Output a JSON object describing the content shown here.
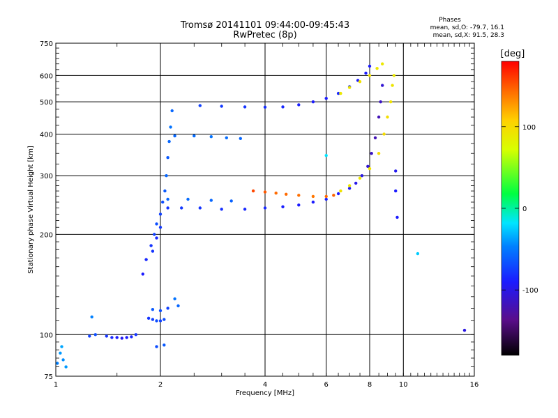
{
  "chart_data": {
    "type": "scatter",
    "title": "Tromsø 20141101 09:44:00-09:45:43",
    "subtitle": "RwPretec (8p)",
    "xlabel": "Frequency [MHz]",
    "ylabel": "Stationary phase Virtual Height [km]",
    "x_scale": "log2",
    "y_scale": "log",
    "xlim": [
      1,
      16
    ],
    "ylim": [
      75,
      750
    ],
    "x_ticks": [
      1,
      2,
      4,
      6,
      8,
      10,
      16
    ],
    "y_ticks": [
      75,
      100,
      200,
      300,
      400,
      500,
      600,
      750
    ],
    "grid": true,
    "phase_box": {
      "title": "Phases",
      "line1": "mean, sd,O: -79.7, 16.1",
      "line2": "mean, sd,X:  91.5, 28.3"
    },
    "colorbar": {
      "label": "[deg]",
      "range": [
        -180,
        180
      ],
      "ticks": [
        100,
        0,
        -100
      ],
      "tick_labels": [
        "100",
        "0",
        "-100"
      ],
      "colormap": "rainbow"
    },
    "series": [
      {
        "points": [
          [
            1.01,
            82,
            -60
          ],
          [
            1.03,
            88,
            -50
          ],
          [
            1.05,
            84,
            -55
          ],
          [
            1.04,
            92,
            -45
          ],
          [
            1.07,
            80,
            -50
          ]
        ]
      },
      {
        "points": [
          [
            1.25,
            99,
            -85
          ],
          [
            1.3,
            100,
            -80
          ],
          [
            1.4,
            99,
            -90
          ],
          [
            1.45,
            98,
            -95
          ],
          [
            1.5,
            98,
            -100
          ],
          [
            1.55,
            97.5,
            -105
          ],
          [
            1.6,
            98,
            -100
          ],
          [
            1.65,
            98.5,
            -95
          ],
          [
            1.7,
            100,
            -90
          ],
          [
            1.27,
            113,
            -60
          ]
        ]
      },
      {
        "points": [
          [
            1.85,
            112,
            -90
          ],
          [
            1.9,
            111,
            -85
          ],
          [
            1.95,
            110,
            -80
          ],
          [
            2.0,
            110,
            -85
          ],
          [
            2.05,
            111,
            -80
          ],
          [
            1.9,
            119,
            -75
          ],
          [
            2.0,
            118,
            -80
          ],
          [
            2.1,
            120,
            -85
          ],
          [
            2.2,
            128,
            -65
          ],
          [
            2.25,
            122,
            -70
          ],
          [
            1.95,
            92,
            -80
          ],
          [
            2.05,
            93,
            -75
          ]
        ]
      },
      {
        "points": [
          [
            1.78,
            152,
            -100
          ],
          [
            1.82,
            168,
            -95
          ],
          [
            1.88,
            185,
            -90
          ],
          [
            1.92,
            200,
            -85
          ],
          [
            1.95,
            215,
            -80
          ],
          [
            2.0,
            230,
            -85
          ],
          [
            2.03,
            250,
            -80
          ],
          [
            2.06,
            270,
            -75
          ],
          [
            2.08,
            300,
            -70
          ],
          [
            2.1,
            340,
            -75
          ],
          [
            2.12,
            380,
            -70
          ],
          [
            2.14,
            420,
            -65
          ],
          [
            2.16,
            470,
            -70
          ],
          [
            1.9,
            178,
            -90
          ],
          [
            1.95,
            195,
            -95
          ],
          [
            2.0,
            210,
            -88
          ]
        ]
      },
      {
        "points": [
          [
            2.1,
            240,
            -90
          ],
          [
            2.3,
            240,
            -88
          ],
          [
            2.6,
            240,
            -90
          ],
          [
            3.0,
            238,
            -92
          ],
          [
            3.5,
            238,
            -95
          ],
          [
            4.0,
            240,
            -95
          ],
          [
            4.5,
            242,
            -98
          ],
          [
            5.0,
            245,
            -100
          ],
          [
            5.5,
            250,
            -100
          ],
          [
            6.0,
            255,
            -98
          ],
          [
            6.5,
            265,
            -100
          ],
          [
            7.0,
            275,
            -105
          ],
          [
            7.3,
            285,
            -108
          ],
          [
            7.6,
            300,
            -110
          ],
          [
            7.9,
            320,
            -115
          ],
          [
            8.1,
            350,
            -120
          ],
          [
            8.3,
            390,
            -125
          ],
          [
            8.5,
            450,
            -125
          ],
          [
            8.6,
            500,
            -120
          ],
          [
            8.7,
            560,
            -115
          ]
        ]
      },
      {
        "points": [
          [
            2.1,
            255,
            -70
          ],
          [
            2.4,
            255,
            -68
          ],
          [
            2.8,
            253,
            -70
          ],
          [
            3.2,
            252,
            -72
          ]
        ]
      },
      {
        "points": [
          [
            3.7,
            270,
            160
          ],
          [
            4.0,
            268,
            155
          ],
          [
            4.3,
            266,
            150
          ],
          [
            4.6,
            264,
            150
          ],
          [
            5.0,
            262,
            148
          ],
          [
            5.5,
            260,
            145
          ],
          [
            6.0,
            260,
            150
          ],
          [
            6.3,
            262,
            152
          ]
        ]
      },
      {
        "points": [
          [
            6.6,
            270,
            95
          ],
          [
            7.0,
            280,
            90
          ],
          [
            7.5,
            295,
            92
          ],
          [
            8.0,
            315,
            95
          ],
          [
            8.5,
            350,
            100
          ],
          [
            8.8,
            400,
            100
          ],
          [
            9.0,
            450,
            98
          ],
          [
            9.2,
            500,
            95
          ],
          [
            9.3,
            560,
            92
          ],
          [
            9.4,
            600,
            90
          ]
        ]
      },
      {
        "points": [
          [
            2.6,
            487,
            -85
          ],
          [
            3.0,
            485,
            -88
          ],
          [
            3.5,
            483,
            -90
          ],
          [
            4.0,
            482,
            -92
          ],
          [
            4.5,
            483,
            -95
          ],
          [
            5.0,
            490,
            -98
          ],
          [
            5.5,
            500,
            -100
          ],
          [
            6.0,
            512,
            -100
          ],
          [
            6.5,
            530,
            -95
          ],
          [
            7.0,
            555,
            -95
          ],
          [
            7.4,
            580,
            -100
          ],
          [
            7.8,
            610,
            -100
          ],
          [
            8.0,
            640,
            -100
          ]
        ]
      },
      {
        "points": [
          [
            6.6,
            530,
            90
          ],
          [
            7.0,
            552,
            92
          ],
          [
            7.5,
            575,
            95
          ],
          [
            8.0,
            600,
            95
          ],
          [
            8.4,
            630,
            92
          ],
          [
            8.7,
            650,
            90
          ]
        ]
      },
      {
        "points": [
          [
            2.2,
            395,
            -70
          ],
          [
            2.5,
            395,
            -68
          ],
          [
            2.8,
            393,
            -65
          ],
          [
            3.1,
            390,
            -68
          ],
          [
            3.4,
            388,
            -70
          ]
        ]
      },
      {
        "points": [
          [
            6.0,
            345,
            -20
          ],
          [
            9.5,
            310,
            -105
          ],
          [
            9.5,
            270,
            -100
          ],
          [
            9.6,
            225,
            -100
          ],
          [
            11.0,
            175,
            -30
          ],
          [
            15.0,
            103,
            -110
          ]
        ]
      }
    ]
  }
}
